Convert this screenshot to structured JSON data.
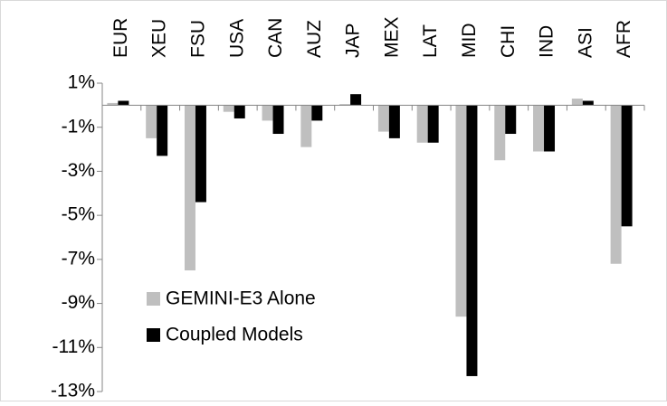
{
  "chart_data": {
    "type": "bar",
    "categories": [
      "EUR",
      "XEU",
      "FSU",
      "USA",
      "CAN",
      "AUZ",
      "JAP",
      "MEX",
      "LAT",
      "MID",
      "CHI",
      "IND",
      "ASI",
      "AFR"
    ],
    "series": [
      {
        "name": "GEMINI-E3 Alone",
        "color": "#bfbfbf",
        "values": [
          0.1,
          -1.5,
          -7.5,
          -0.3,
          -0.7,
          -1.9,
          0.05,
          -1.2,
          -1.7,
          -9.6,
          -2.5,
          -2.1,
          0.3,
          -7.2
        ]
      },
      {
        "name": "Coupled Models",
        "color": "#000000",
        "values": [
          0.2,
          -2.3,
          -4.4,
          -0.6,
          -1.3,
          -0.7,
          0.5,
          -1.5,
          -1.7,
          -12.3,
          -1.3,
          -2.1,
          0.2,
          -5.5
        ]
      }
    ],
    "ylim": [
      -13,
      1
    ],
    "yticks": [
      {
        "value": 1,
        "label": "1%"
      },
      {
        "value": -1,
        "label": "-1%"
      },
      {
        "value": -3,
        "label": "-3%"
      },
      {
        "value": -5,
        "label": "-5%"
      },
      {
        "value": -7,
        "label": "-7%"
      },
      {
        "value": -9,
        "label": "-9%"
      },
      {
        "value": -11,
        "label": "-11%"
      },
      {
        "value": -13,
        "label": "-13%"
      }
    ],
    "grid": false,
    "legend": "lower-left"
  }
}
